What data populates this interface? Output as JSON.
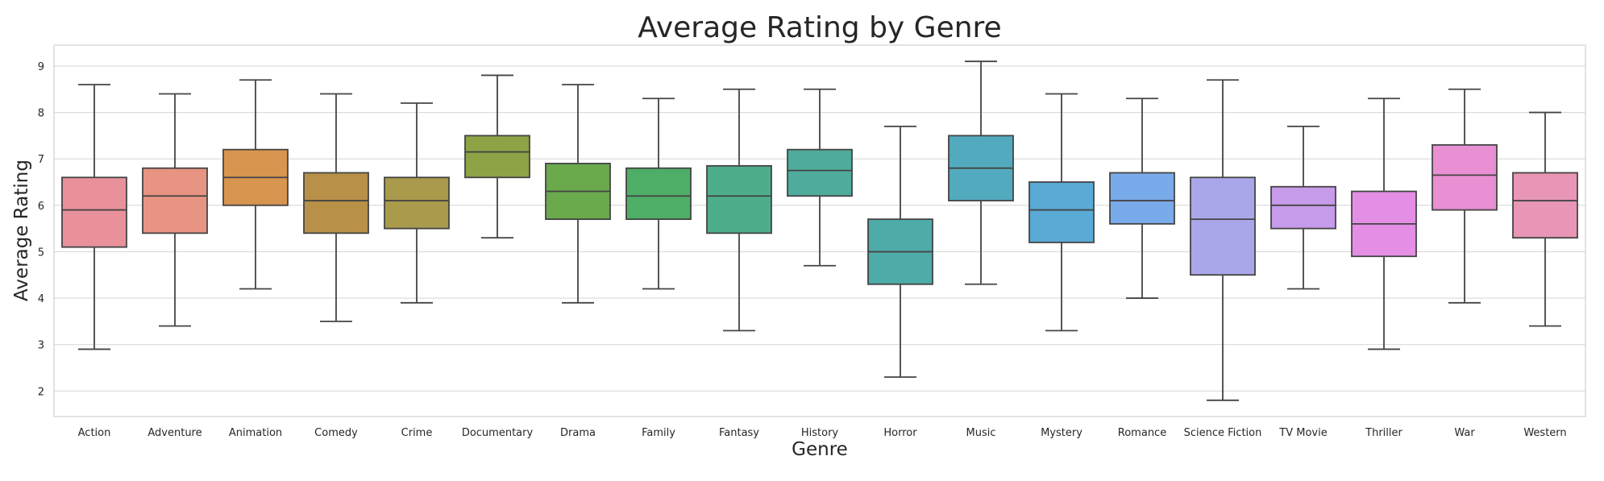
{
  "chart_data": {
    "type": "box",
    "title": "Average Rating by Genre",
    "xlabel": "Genre",
    "ylabel": "Average Rating",
    "ylim": [
      1.45,
      9.45
    ],
    "yticks": [
      2,
      3,
      4,
      5,
      6,
      7,
      8,
      9
    ],
    "grid": true,
    "categories": [
      "Action",
      "Adventure",
      "Animation",
      "Comedy",
      "Crime",
      "Documentary",
      "Drama",
      "Family",
      "Fantasy",
      "History",
      "Horror",
      "Music",
      "Mystery",
      "Romance",
      "Science Fiction",
      "TV Movie",
      "Thriller",
      "War",
      "Western"
    ],
    "colors": [
      "#e9919a",
      "#e89482",
      "#d8954f",
      "#b99048",
      "#a99b4b",
      "#8ea346",
      "#6aa94c",
      "#4eae67",
      "#4eae8a",
      "#4fab9b",
      "#4daba8",
      "#52aabe",
      "#5aaad6",
      "#79aae9",
      "#aaa6ea",
      "#c59bea",
      "#e48ee5",
      "#e890d3",
      "#e895b6"
    ],
    "boxes": [
      {
        "min": 2.9,
        "q1": 5.1,
        "median": 5.9,
        "q3": 6.6,
        "max": 8.6
      },
      {
        "min": 3.4,
        "q1": 5.4,
        "median": 6.2,
        "q3": 6.8,
        "max": 8.4
      },
      {
        "min": 4.2,
        "q1": 6.0,
        "median": 6.6,
        "q3": 7.2,
        "max": 8.7
      },
      {
        "min": 3.5,
        "q1": 5.4,
        "median": 6.1,
        "q3": 6.7,
        "max": 8.4
      },
      {
        "min": 3.9,
        "q1": 5.5,
        "median": 6.1,
        "q3": 6.6,
        "max": 8.2
      },
      {
        "min": 5.3,
        "q1": 6.6,
        "median": 7.15,
        "q3": 7.5,
        "max": 8.8
      },
      {
        "min": 3.9,
        "q1": 5.7,
        "median": 6.3,
        "q3": 6.9,
        "max": 8.6
      },
      {
        "min": 4.2,
        "q1": 5.7,
        "median": 6.2,
        "q3": 6.8,
        "max": 8.3
      },
      {
        "min": 3.3,
        "q1": 5.4,
        "median": 6.2,
        "q3": 6.85,
        "max": 8.5
      },
      {
        "min": 4.7,
        "q1": 6.2,
        "median": 6.75,
        "q3": 7.2,
        "max": 8.5
      },
      {
        "min": 2.3,
        "q1": 4.3,
        "median": 5.0,
        "q3": 5.7,
        "max": 7.7
      },
      {
        "min": 4.3,
        "q1": 6.1,
        "median": 6.8,
        "q3": 7.5,
        "max": 9.1
      },
      {
        "min": 3.3,
        "q1": 5.2,
        "median": 5.9,
        "q3": 6.5,
        "max": 8.4
      },
      {
        "min": 4.0,
        "q1": 5.6,
        "median": 6.1,
        "q3": 6.7,
        "max": 8.3
      },
      {
        "min": 1.8,
        "q1": 4.5,
        "median": 5.7,
        "q3": 6.6,
        "max": 8.7
      },
      {
        "min": 4.2,
        "q1": 5.5,
        "median": 6.0,
        "q3": 6.4,
        "max": 7.7
      },
      {
        "min": 2.9,
        "q1": 4.9,
        "median": 5.6,
        "q3": 6.3,
        "max": 8.3
      },
      {
        "min": 3.9,
        "q1": 5.9,
        "median": 6.65,
        "q3": 7.3,
        "max": 8.5
      },
      {
        "min": 3.4,
        "q1": 5.3,
        "median": 6.1,
        "q3": 6.7,
        "max": 8.0
      }
    ]
  }
}
